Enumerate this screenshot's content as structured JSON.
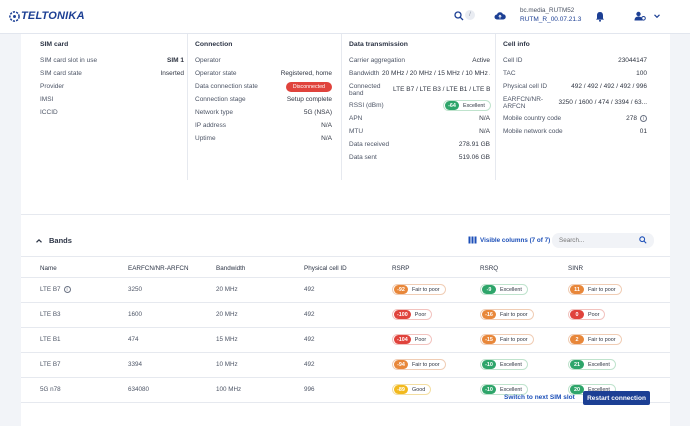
{
  "header": {
    "brand": "TELTONIKA",
    "search_shortcut": "/",
    "device_name": "bc.media_RUTM52",
    "firmware": "RUTM_R_00.07.21.3"
  },
  "sim_card": {
    "title": "SIM card",
    "rows": [
      {
        "k": "SIM card slot in use",
        "v": "SIM 1"
      },
      {
        "k": "SIM card state",
        "v": "Inserted"
      },
      {
        "k": "Provider",
        "v": ""
      },
      {
        "k": "IMSI",
        "v": ""
      },
      {
        "k": "ICCID",
        "v": ""
      }
    ]
  },
  "connection": {
    "title": "Connection",
    "rows": [
      {
        "k": "Operator",
        "v": ""
      },
      {
        "k": "Operator state",
        "v": "Registered, home"
      },
      {
        "k": "Data connection state",
        "v": "Disconnected"
      },
      {
        "k": "Connection stage",
        "v": "Setup complete"
      },
      {
        "k": "Network type",
        "v": "5G (NSA)"
      },
      {
        "k": "IP address",
        "v": "N/A"
      },
      {
        "k": "Uptime",
        "v": "N/A"
      }
    ]
  },
  "data_transmission": {
    "title": "Data transmission",
    "rows": [
      {
        "k": "Carrier aggregation",
        "v": "Active"
      },
      {
        "k": "Bandwidth",
        "v": "20 MHz / 20 MHz / 15 MHz / 10 MHz /..."
      },
      {
        "k": "Connected band",
        "v": "LTE B7 / LTE B3 / LTE B1 / LTE B7..."
      },
      {
        "k": "RSSI (dBm)",
        "v": "-64",
        "label": "Excellent"
      },
      {
        "k": "APN",
        "v": "N/A"
      },
      {
        "k": "MTU",
        "v": "N/A"
      },
      {
        "k": "Data received",
        "v": "278.91 GB"
      },
      {
        "k": "Data sent",
        "v": "519.06 GB"
      }
    ]
  },
  "cell_info": {
    "title": "Cell info",
    "rows": [
      {
        "k": "Cell ID",
        "v": "23044147"
      },
      {
        "k": "TAC",
        "v": "100"
      },
      {
        "k": "Physical cell ID",
        "v": "492 / 492 / 492 / 492 / 996"
      },
      {
        "k": "EARFCN/NR-ARFCN",
        "v": "3250 / 1600 / 474 / 3394 / 63..."
      },
      {
        "k": "Mobile country code",
        "v": "278"
      },
      {
        "k": "Mobile network code",
        "v": "01"
      }
    ]
  },
  "bands": {
    "title": "Bands",
    "visible_columns": "Visible columns (7 of 7)",
    "search_placeholder": "Search...",
    "columns": [
      "Name",
      "EARFCN/NR-ARFCN",
      "Bandwidth",
      "Physical cell ID",
      "RSRP",
      "RSRQ",
      "SINR"
    ],
    "rows": [
      {
        "name": "LTE B7",
        "earfcn": "3250",
        "bw": "20 MHz",
        "pci": "492",
        "rsrp": {
          "v": "-92",
          "label": "Fair to poor",
          "color": "#e8873a"
        },
        "rsrq": {
          "v": "-9",
          "label": "Excellent",
          "color": "#2ea56a"
        },
        "sinr": {
          "v": "11",
          "label": "Fair to poor",
          "color": "#e8873a"
        }
      },
      {
        "name": "LTE B3",
        "earfcn": "1600",
        "bw": "20 MHz",
        "pci": "492",
        "rsrp": {
          "v": "-100",
          "label": "Poor",
          "color": "#e0433c"
        },
        "rsrq": {
          "v": "-16",
          "label": "Fair to poor",
          "color": "#e8873a"
        },
        "sinr": {
          "v": "0",
          "label": "Poor",
          "color": "#e0433c"
        }
      },
      {
        "name": "LTE B1",
        "earfcn": "474",
        "bw": "15 MHz",
        "pci": "492",
        "rsrp": {
          "v": "-104",
          "label": "Poor",
          "color": "#e0433c"
        },
        "rsrq": {
          "v": "-15",
          "label": "Fair to poor",
          "color": "#e8873a"
        },
        "sinr": {
          "v": "2",
          "label": "Fair to poor",
          "color": "#e8873a"
        }
      },
      {
        "name": "LTE B7",
        "earfcn": "3394",
        "bw": "10 MHz",
        "pci": "492",
        "rsrp": {
          "v": "-94",
          "label": "Fair to poor",
          "color": "#e8873a"
        },
        "rsrq": {
          "v": "-10",
          "label": "Excellent",
          "color": "#2ea56a"
        },
        "sinr": {
          "v": "21",
          "label": "Excellent",
          "color": "#2ea56a"
        }
      },
      {
        "name": "5G n78",
        "earfcn": "634080",
        "bw": "100 MHz",
        "pci": "996",
        "rsrp": {
          "v": "-89",
          "label": "Good",
          "color": "#f2b91e"
        },
        "rsrq": {
          "v": "-10",
          "label": "Excellent",
          "color": "#2ea56a"
        },
        "sinr": {
          "v": "20",
          "label": "Excellent",
          "color": "#2ea56a"
        }
      }
    ]
  },
  "actions": {
    "switch_sim": "Switch to next SIM slot",
    "restart": "Restart connection"
  }
}
